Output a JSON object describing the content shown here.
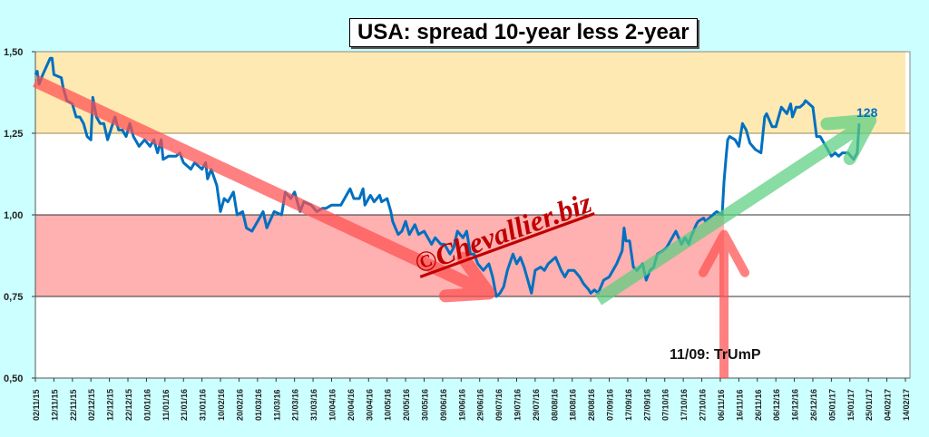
{
  "chart_data": {
    "type": "line",
    "title": "USA: spread 10-year less 2-year",
    "xlabel": "",
    "ylabel": "",
    "ylim": [
      0.5,
      1.5
    ],
    "yticks": [
      "0,50",
      "0,75",
      "1,00",
      "1,25",
      "1,50"
    ],
    "ytick_values": [
      0.5,
      0.75,
      1.0,
      1.25,
      1.5
    ],
    "x_unit": "days since 02/11/15",
    "xlim": [
      0,
      470
    ],
    "xticks": [
      "02/11/15",
      "12/11/15",
      "22/11/15",
      "02/12/15",
      "12/12/15",
      "22/12/15",
      "01/01/16",
      "11/01/16",
      "21/01/16",
      "31/01/16",
      "10/02/16",
      "20/02/16",
      "01/03/16",
      "11/03/16",
      "21/03/16",
      "31/03/16",
      "10/04/16",
      "20/04/16",
      "30/04/16",
      "10/05/16",
      "20/05/16",
      "30/05/16",
      "09/06/16",
      "19/06/16",
      "29/06/16",
      "09/07/16",
      "19/07/16",
      "29/07/16",
      "08/08/16",
      "18/08/16",
      "28/08/16",
      "07/09/16",
      "17/09/16",
      "27/09/16",
      "07/10/16",
      "17/10/16",
      "27/10/16",
      "06/11/16",
      "16/11/16",
      "26/11/16",
      "06/12/16",
      "16/12/16",
      "26/12/16",
      "05/01/17",
      "15/01/17",
      "25/01/17",
      "04/02/17",
      "14/02/17"
    ],
    "grid": true,
    "bands": [
      {
        "from": 1.25,
        "to": 1.5,
        "color": "#ffe9b3",
        "x_end_day": 470
      },
      {
        "from": 0.75,
        "to": 1.0,
        "color": "#ffb0b0",
        "x_end_day": 372
      }
    ],
    "series": [
      {
        "name": "spread",
        "color": "#0070c0",
        "x": [
          0,
          1,
          2,
          4,
          8,
          9,
          10,
          14,
          15,
          17,
          20,
          22,
          24,
          26,
          28,
          30,
          31,
          33,
          35,
          37,
          39,
          43,
          45,
          47,
          49,
          51,
          53,
          56,
          59,
          62,
          64,
          66,
          68,
          69,
          72,
          76,
          78,
          80,
          84,
          86,
          90,
          92,
          93,
          95,
          98,
          100,
          102,
          104,
          107,
          109,
          112,
          114,
          117,
          120,
          123,
          125,
          129,
          133,
          135,
          138,
          140,
          143,
          145,
          149,
          152,
          155,
          157,
          160,
          163,
          165,
          170,
          172,
          175,
          177,
          178,
          181,
          183,
          186,
          187,
          190,
          192,
          193,
          196,
          198,
          200,
          202,
          205,
          207,
          210,
          214,
          216,
          219,
          221,
          224,
          226,
          228,
          231,
          233,
          235,
          237,
          239,
          242,
          245,
          247,
          249,
          251,
          253,
          255,
          258,
          260,
          262,
          264,
          266,
          268,
          270,
          273,
          275,
          277,
          281,
          284,
          286,
          288,
          291,
          294,
          296,
          299,
          300,
          302,
          304,
          307,
          310,
          312,
          314,
          317,
          318,
          319,
          321,
          323,
          325,
          328,
          330,
          332,
          334,
          336,
          339,
          341,
          344,
          346,
          349,
          351,
          353,
          354,
          357,
          358,
          361,
          362,
          366,
          368,
          371,
          372,
          373,
          374,
          375,
          378,
          380,
          382,
          384,
          386,
          389,
          392,
          394,
          395,
          398,
          400,
          403,
          406,
          408,
          409,
          411,
          413,
          415,
          416,
          418,
          420,
          422,
          424,
          427,
          430,
          432,
          434,
          436,
          439,
          442,
          444,
          445
        ],
        "values": [
          1.43,
          1.44,
          1.4,
          1.43,
          1.48,
          1.48,
          1.43,
          1.42,
          1.39,
          1.35,
          1.34,
          1.3,
          1.3,
          1.28,
          1.24,
          1.23,
          1.36,
          1.3,
          1.28,
          1.28,
          1.23,
          1.3,
          1.26,
          1.26,
          1.24,
          1.28,
          1.24,
          1.21,
          1.23,
          1.21,
          1.23,
          1.19,
          1.23,
          1.17,
          1.18,
          1.18,
          1.19,
          1.16,
          1.14,
          1.16,
          1.14,
          1.16,
          1.11,
          1.14,
          1.09,
          1.01,
          1.05,
          1.04,
          1.07,
          1.0,
          1.01,
          0.96,
          0.95,
          0.98,
          1.01,
          0.96,
          1.01,
          1.0,
          1.07,
          1.05,
          1.07,
          1.01,
          1.04,
          1.03,
          1.01,
          1.02,
          1.02,
          1.03,
          1.03,
          1.03,
          1.08,
          1.05,
          1.05,
          1.08,
          1.03,
          1.06,
          1.04,
          1.06,
          1.04,
          1.05,
          1.01,
          0.98,
          0.94,
          0.95,
          0.98,
          0.94,
          0.97,
          0.94,
          0.95,
          0.91,
          0.93,
          0.91,
          0.91,
          0.88,
          0.9,
          0.95,
          0.93,
          0.95,
          0.88,
          0.88,
          0.85,
          0.83,
          0.85,
          0.81,
          0.75,
          0.76,
          0.78,
          0.83,
          0.88,
          0.85,
          0.87,
          0.84,
          0.8,
          0.76,
          0.83,
          0.84,
          0.83,
          0.85,
          0.87,
          0.83,
          0.81,
          0.83,
          0.83,
          0.81,
          0.79,
          0.77,
          0.76,
          0.77,
          0.76,
          0.8,
          0.81,
          0.83,
          0.85,
          0.89,
          0.96,
          0.92,
          0.92,
          0.84,
          0.83,
          0.85,
          0.8,
          0.83,
          0.84,
          0.88,
          0.89,
          0.9,
          0.93,
          0.95,
          0.91,
          0.93,
          0.91,
          0.93,
          0.97,
          0.98,
          0.99,
          0.98,
          1.0,
          1.01,
          1.0,
          1.1,
          1.17,
          1.23,
          1.24,
          1.23,
          1.21,
          1.28,
          1.26,
          1.22,
          1.2,
          1.19,
          1.3,
          1.31,
          1.27,
          1.27,
          1.33,
          1.31,
          1.34,
          1.3,
          1.33,
          1.33,
          1.34,
          1.35,
          1.34,
          1.33,
          1.24,
          1.24,
          1.21,
          1.18,
          1.19,
          1.18,
          1.19,
          1.19,
          1.17,
          1.19,
          1.28
        ]
      }
    ],
    "annotations": {
      "last_value": "128",
      "event": "11/09: TrUmP",
      "watermark": "©Chevallier.biz"
    },
    "trend_arrows": [
      {
        "name": "downtrend",
        "from": [
          0,
          1.41
        ],
        "to": [
          245,
          0.76
        ],
        "color": "#ff5050"
      },
      {
        "name": "uptrend",
        "from": [
          304,
          0.74
        ],
        "to": [
          451,
          1.29
        ],
        "color": "#5ccf80"
      },
      {
        "name": "event-arrow",
        "from": [
          372,
          0.5
        ],
        "to": [
          372,
          0.94
        ],
        "color": "#ff5050"
      }
    ]
  }
}
